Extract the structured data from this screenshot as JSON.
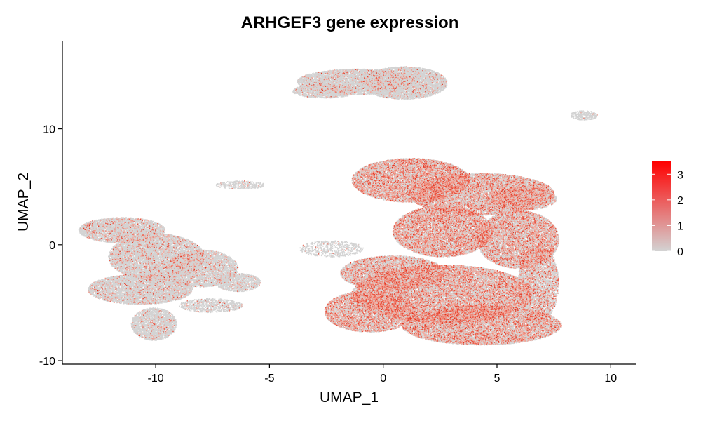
{
  "chart_data": {
    "type": "scatter",
    "title": "ARHGEF3 gene expression",
    "xlabel": "UMAP_1",
    "ylabel": "UMAP_2",
    "xlim": [
      -14.1,
      11.1
    ],
    "ylim": [
      -10.3,
      17.6
    ],
    "x_ticks": [
      -10,
      -5,
      0,
      5,
      10
    ],
    "y_ticks": [
      -10,
      0,
      10
    ],
    "x_tick_labels": [
      "-10",
      "-5",
      "0",
      "5",
      "10"
    ],
    "y_tick_labels": [
      "-10",
      "0",
      "10"
    ],
    "grid": false,
    "legend": {
      "position": "right",
      "type": "colorbar",
      "range": [
        0,
        3.5
      ],
      "ticks": [
        0,
        1,
        2,
        3
      ],
      "tick_labels": [
        "0",
        "1",
        "2",
        "3"
      ],
      "low_color": "#D3D3D3",
      "high_color": "#FF0000"
    },
    "clusters": [
      {
        "shape": "ellipse",
        "cx": -11.5,
        "cy": 1.3,
        "rx": 1.9,
        "ry": 1.1,
        "density": 1.2,
        "expr": 0.12
      },
      {
        "shape": "ellipse",
        "cx": -10.0,
        "cy": -1.0,
        "rx": 2.1,
        "ry": 2.0,
        "density": 1.2,
        "expr": 0.1
      },
      {
        "shape": "ellipse",
        "cx": -10.7,
        "cy": -3.8,
        "rx": 2.3,
        "ry": 1.3,
        "density": 1.2,
        "expr": 0.1
      },
      {
        "shape": "ellipse",
        "cx": -10.1,
        "cy": -6.8,
        "rx": 1.0,
        "ry": 1.4,
        "density": 1.0,
        "expr": 0.08
      },
      {
        "shape": "ellipse",
        "cx": -8.0,
        "cy": -2.0,
        "rx": 1.6,
        "ry": 1.6,
        "density": 1.0,
        "expr": 0.1
      },
      {
        "shape": "ellipse",
        "cx": -6.4,
        "cy": -3.2,
        "rx": 1.0,
        "ry": 0.8,
        "density": 0.8,
        "expr": 0.08
      },
      {
        "shape": "ellipse",
        "cx": -7.6,
        "cy": -5.2,
        "rx": 1.4,
        "ry": 0.6,
        "density": 0.6,
        "expr": 0.08
      },
      {
        "shape": "ellipse",
        "cx": -1.2,
        "cy": 14.1,
        "rx": 2.6,
        "ry": 1.1,
        "density": 1.2,
        "expr": 0.08
      },
      {
        "shape": "ellipse",
        "cx": 0.9,
        "cy": 14.0,
        "rx": 1.9,
        "ry": 1.4,
        "density": 1.2,
        "expr": 0.08
      },
      {
        "shape": "ellipse",
        "cx": -2.6,
        "cy": 13.3,
        "rx": 1.4,
        "ry": 0.6,
        "density": 1.0,
        "expr": 0.08
      },
      {
        "shape": "ellipse",
        "cx": 8.8,
        "cy": 11.2,
        "rx": 0.6,
        "ry": 0.4,
        "density": 0.8,
        "expr": 0.02
      },
      {
        "shape": "ellipse",
        "cx": -6.3,
        "cy": 5.2,
        "rx": 1.1,
        "ry": 0.35,
        "density": 0.5,
        "expr": 0.05
      },
      {
        "shape": "ellipse",
        "cx": -2.3,
        "cy": -0.3,
        "rx": 1.4,
        "ry": 0.7,
        "density": 0.35,
        "expr": 0.05
      },
      {
        "shape": "ellipse",
        "cx": 1.2,
        "cy": 5.6,
        "rx": 2.6,
        "ry": 1.9,
        "density": 1.3,
        "expr": 0.35
      },
      {
        "shape": "ellipse",
        "cx": 4.3,
        "cy": 4.4,
        "rx": 3.2,
        "ry": 1.8,
        "density": 1.3,
        "expr": 0.3
      },
      {
        "shape": "ellipse",
        "cx": 2.6,
        "cy": 1.2,
        "rx": 2.2,
        "ry": 2.2,
        "density": 1.3,
        "expr": 0.35
      },
      {
        "shape": "ellipse",
        "cx": 5.9,
        "cy": 0.5,
        "rx": 1.8,
        "ry": 2.5,
        "density": 1.3,
        "expr": 0.3
      },
      {
        "shape": "ellipse",
        "cx": 0.4,
        "cy": -2.4,
        "rx": 2.3,
        "ry": 1.5,
        "density": 1.2,
        "expr": 0.28
      },
      {
        "shape": "ellipse",
        "cx": 2.6,
        "cy": -4.2,
        "rx": 4.0,
        "ry": 2.5,
        "density": 1.3,
        "expr": 0.32
      },
      {
        "shape": "ellipse",
        "cx": -0.6,
        "cy": -5.7,
        "rx": 2.0,
        "ry": 1.8,
        "density": 1.2,
        "expr": 0.35
      },
      {
        "shape": "ellipse",
        "cx": 4.3,
        "cy": -6.9,
        "rx": 3.5,
        "ry": 1.7,
        "density": 1.3,
        "expr": 0.35
      },
      {
        "shape": "ellipse",
        "cx": 6.8,
        "cy": -3.3,
        "rx": 0.9,
        "ry": 3.3,
        "density": 1.0,
        "expr": 0.25
      },
      {
        "shape": "ellipse",
        "cx": 6.1,
        "cy": 4.0,
        "rx": 1.5,
        "ry": 1.0,
        "density": 1.0,
        "expr": 0.25
      }
    ]
  }
}
